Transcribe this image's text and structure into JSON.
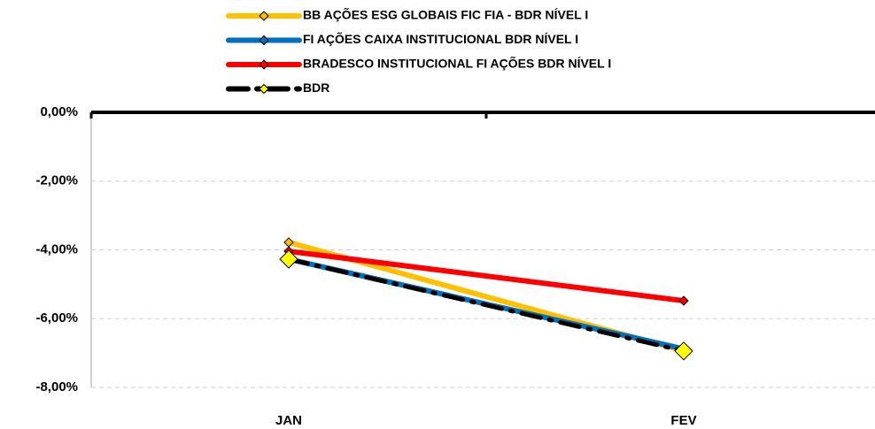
{
  "chart_data": {
    "type": "line",
    "categories": [
      "JAN",
      "FEV"
    ],
    "series": [
      {
        "name": "BB AÇÕES ESG GLOBAIS FIC FIA - BDR NÍVEL I",
        "color": "#FFC000",
        "marker_color": "#FFC000",
        "values": [
          -3.78,
          -6.94
        ]
      },
      {
        "name": "FI AÇÕES CAIXA INSTITUCIONAL BDR NÍVEL I",
        "color": "#0070C0",
        "marker_color": "#0070C0",
        "values": [
          -4.27,
          -6.88
        ]
      },
      {
        "name": "BRADESCO INSTITUCIONAL FI AÇÕES BDR NÍVEL I",
        "color": "#FF0000",
        "marker_color": "#FF0000",
        "values": [
          -4.04,
          -5.48
        ]
      },
      {
        "name": "BDR",
        "color": "#000000",
        "marker_color": "#FFFF00",
        "values": [
          -4.27,
          -6.94
        ]
      }
    ],
    "ylim": [
      -8,
      0
    ],
    "yticks": [
      {
        "value": 0,
        "label": "0,00%"
      },
      {
        "value": -2,
        "label": "-2,00%"
      },
      {
        "value": -4,
        "label": "-4,00%"
      },
      {
        "value": -6,
        "label": "-6,00%"
      },
      {
        "value": -8,
        "label": "-8,00%"
      }
    ],
    "grid": true,
    "legend": "top"
  }
}
